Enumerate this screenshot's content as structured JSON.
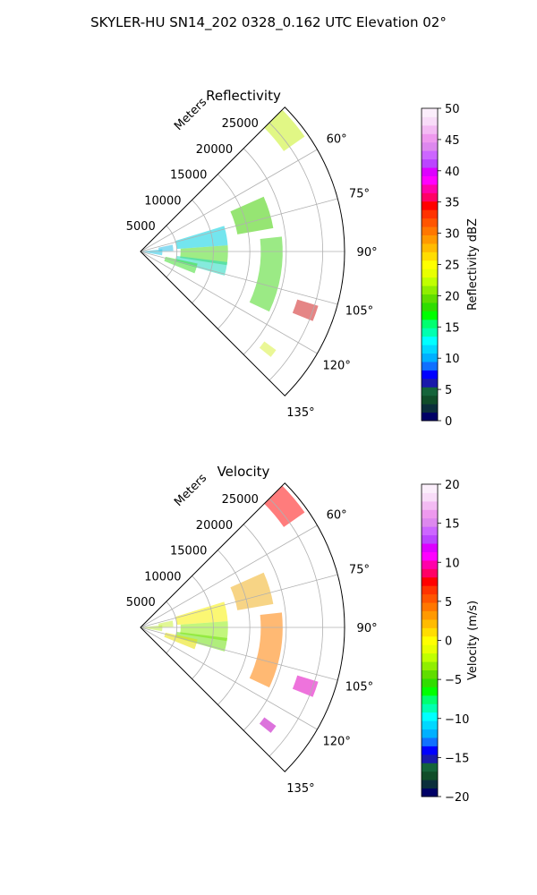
{
  "title": "SKYLER-HU  SN14_202  0328_0.162 UTC Elevation 02°",
  "chart_data": [
    {
      "type": "polar_sector",
      "title": "Reflectivity",
      "radial_label": "Meters",
      "radial_ticks": [
        5000,
        10000,
        15000,
        20000,
        25000
      ],
      "rmax": 28000,
      "azimuth_range_deg": [
        45,
        135
      ],
      "azimuth_ticks": [
        "60°",
        "75°",
        "90°",
        "105°",
        "120°",
        "135°"
      ],
      "grid": true,
      "colorbar": {
        "label": "Reflectivity dBZ",
        "range": [
          0,
          50
        ],
        "ticks": [
          "0",
          "5",
          "10",
          "15",
          "20",
          "25",
          "30",
          "35",
          "40",
          "45",
          "50"
        ],
        "colors": [
          "#000066",
          "#0b2e3b",
          "#104d29",
          "#15643a",
          "#1a1aaa",
          "#0000ff",
          "#1070ff",
          "#00b0ff",
          "#00d8ff",
          "#00ffff",
          "#00ffb0",
          "#00ff70",
          "#00ff00",
          "#30dd00",
          "#60dd00",
          "#90ee00",
          "#c0ff00",
          "#e8ff00",
          "#ffff00",
          "#ffdd00",
          "#ffbb00",
          "#ff9900",
          "#ff7700",
          "#ff5500",
          "#ff3300",
          "#ff0000",
          "#ff0066",
          "#ff00aa",
          "#ff00ff",
          "#dd00ff",
          "#bb44ff",
          "#cc66ff",
          "#dd88ee",
          "#ee99ee",
          "#f3bbf3",
          "#f8dcf8",
          "#fbeefb"
        ]
      },
      "echo_bands": [
        {
          "az": [
            45,
            55
          ],
          "r": [
            24000,
            27500
          ],
          "color": "#c8f020"
        },
        {
          "az": [
            66,
            80
          ],
          "r": [
            13500,
            18500
          ],
          "color": "#40d000"
        },
        {
          "az": [
            73,
            86
          ],
          "r": [
            5000,
            12000
          ],
          "color": "#00d0e0"
        },
        {
          "az": [
            78,
            89
          ],
          "r": [
            2500,
            4500
          ],
          "color": "#30c0e8"
        },
        {
          "az": [
            86,
            99
          ],
          "r": [
            5500,
            12000
          ],
          "color": "#50dd20"
        },
        {
          "az": [
            97,
            106
          ],
          "r": [
            5000,
            12000
          ],
          "color": "#20d8c0"
        },
        {
          "az": [
            102,
            112
          ],
          "r": [
            3500,
            8000
          ],
          "color": "#40dc30"
        },
        {
          "az": [
            84,
            100
          ],
          "r": [
            0,
            3000
          ],
          "color": "#20c8e8"
        },
        {
          "az": [
            84,
            115
          ],
          "r": [
            16500,
            19500
          ],
          "color": "#48d820"
        },
        {
          "az": [
            107,
            112
          ],
          "r": [
            22500,
            25500
          ],
          "color": "#d02020"
        },
        {
          "az": [
            126,
            129
          ],
          "r": [
            21000,
            23000
          ],
          "color": "#d8f040"
        }
      ]
    },
    {
      "type": "polar_sector",
      "title": "Velocity",
      "radial_label": "Meters",
      "radial_ticks": [
        5000,
        10000,
        15000,
        20000,
        25000
      ],
      "rmax": 28000,
      "azimuth_range_deg": [
        45,
        135
      ],
      "azimuth_ticks": [
        "60°",
        "75°",
        "90°",
        "105°",
        "120°",
        "135°"
      ],
      "grid": true,
      "colorbar": {
        "label": "Velocity (m/s)",
        "range": [
          -20,
          20
        ],
        "ticks": [
          "−20",
          "−15",
          "−10",
          "−5",
          "0",
          "5",
          "10",
          "15",
          "20"
        ],
        "colors": [
          "#000066",
          "#0b2e3b",
          "#104d29",
          "#15643a",
          "#1a1aaa",
          "#0000ff",
          "#1070ff",
          "#00b0ff",
          "#00d8ff",
          "#00ffff",
          "#00ffb0",
          "#00ff70",
          "#00ff00",
          "#30dd00",
          "#60dd00",
          "#90ee00",
          "#c0ff00",
          "#e8ff00",
          "#ffff00",
          "#ffdd00",
          "#ffbb00",
          "#ff9900",
          "#ff7700",
          "#ff5500",
          "#ff3300",
          "#ff0000",
          "#ff0066",
          "#ff00aa",
          "#ff00ff",
          "#dd00ff",
          "#bb44ff",
          "#cc66ff",
          "#dd88ee",
          "#ee99ee",
          "#f3bbf3",
          "#f8dcf8",
          "#fbeefb"
        ]
      },
      "echo_bands": [
        {
          "az": [
            45,
            55
          ],
          "r": [
            24000,
            27500
          ],
          "color": "#ff1010"
        },
        {
          "az": [
            66,
            80
          ],
          "r": [
            13500,
            18500
          ],
          "color": "#f0b020"
        },
        {
          "az": [
            73,
            86
          ],
          "r": [
            5000,
            12000
          ],
          "color": "#f8f000"
        },
        {
          "az": [
            78,
            89
          ],
          "r": [
            2500,
            4500
          ],
          "color": "#c8f040"
        },
        {
          "az": [
            86,
            99
          ],
          "r": [
            5500,
            12000
          ],
          "color": "#90ee10"
        },
        {
          "az": [
            97,
            106
          ],
          "r": [
            5000,
            12000
          ],
          "color": "#70e010"
        },
        {
          "az": [
            102,
            112
          ],
          "r": [
            3500,
            8000
          ],
          "color": "#e8e000"
        },
        {
          "az": [
            84,
            100
          ],
          "r": [
            0,
            3000
          ],
          "color": "#c0f040"
        },
        {
          "az": [
            84,
            115
          ],
          "r": [
            16500,
            19500
          ],
          "color": "#ff8000"
        },
        {
          "az": [
            107,
            112
          ],
          "r": [
            22500,
            25500
          ],
          "color": "#e000c0"
        },
        {
          "az": [
            126,
            129
          ],
          "r": [
            21000,
            23000
          ],
          "color": "#c000c0"
        }
      ]
    }
  ]
}
